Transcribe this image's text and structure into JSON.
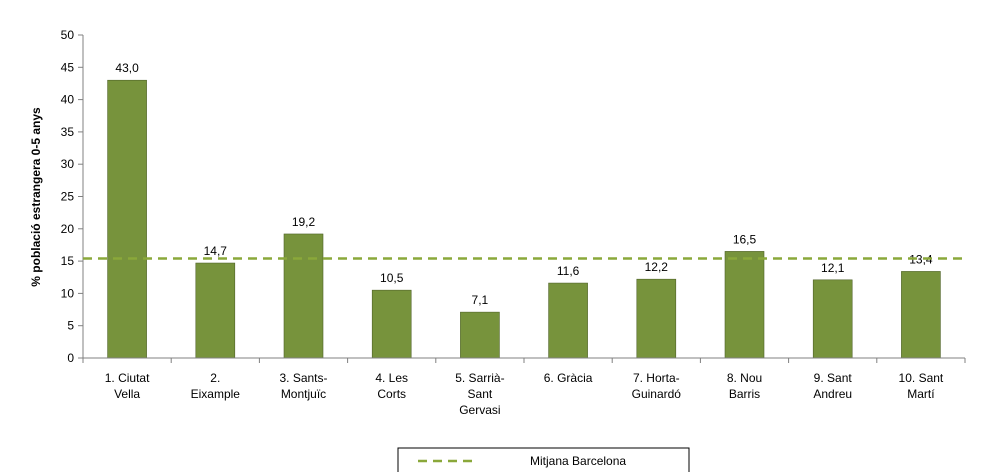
{
  "chart_data": {
    "type": "bar",
    "y_axis_label": "% població estrangera 0-5 anys",
    "categories": [
      "1. Ciutat\nVella",
      "2.\nEixample",
      "3. Sants-\nMontjuïc",
      "4. Les\nCorts",
      "5. Sarrià-\nSant\nGervasi",
      "6. Gràcia",
      "7. Horta-\nGuinardó",
      "8. Nou\nBarris",
      "9. Sant\nAndreu",
      "10. Sant\nMartí"
    ],
    "values": [
      43.0,
      14.7,
      19.2,
      10.5,
      7.1,
      11.6,
      12.2,
      16.5,
      12.1,
      13.4
    ],
    "value_labels": [
      "43,0",
      "14,7",
      "19,2",
      "10,5",
      "7,1",
      "11,6",
      "12,2",
      "16,5",
      "12,1",
      "13,4"
    ],
    "color": "#77933c",
    "reference_line": {
      "name": "Mitjana Barcelona",
      "value": 15.4,
      "color": "#8aa83a"
    },
    "ylim": [
      0,
      50
    ],
    "yticks": [
      0,
      5,
      10,
      15,
      20,
      25,
      30,
      35,
      40,
      45,
      50
    ]
  }
}
